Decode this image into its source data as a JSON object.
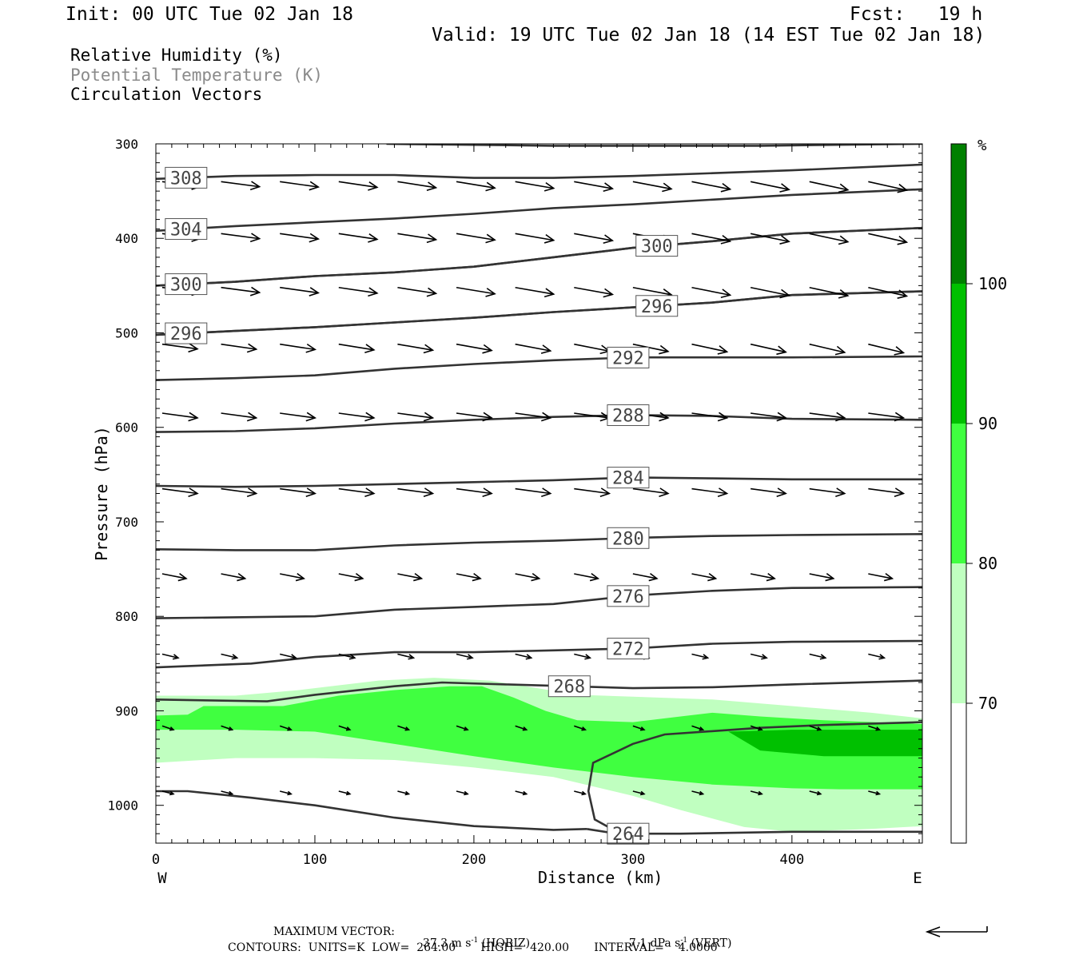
{
  "header": {
    "init": "Init: 00 UTC Tue 02 Jan 18",
    "fcst": "Fcst:   19 h",
    "valid": "Valid: 19 UTC Tue 02 Jan 18 (14 EST Tue 02 Jan 18)"
  },
  "legend": {
    "rh": "Relative Humidity (%)",
    "theta": "Potential Temperature (K)",
    "vectors": "Circulation Vectors"
  },
  "colors": {
    "rh_70": "#c0ffc0",
    "rh_80": "#40ff40",
    "rh_90": "#00c000",
    "rh_100": "#008000",
    "contour": "#333333",
    "theta_legend": "#8a8a8a"
  },
  "footer": {
    "max_vector_label": "MAXIMUM VECTOR:",
    "horiz_value": "37.3 m s",
    "horiz_unit": "(HORIZ)",
    "vert_value": "7.1 dPa s",
    "vert_unit": "(VERT)",
    "exponent": "-1",
    "contours": "CONTOURS:  UNITS=K  LOW=  264.00       HIGH=  420.00       INTERVAL=    4.0000"
  },
  "chart_data": {
    "type": "cross-section",
    "xlabel": "Distance (km)",
    "ylabel": "Pressure (hPa)",
    "xlim": [
      0,
      482
    ],
    "ylim": [
      300,
      1040
    ],
    "y_inverted": true,
    "xticks": [
      0,
      100,
      200,
      300,
      400
    ],
    "yticks": [
      300,
      400,
      500,
      600,
      700,
      800,
      900,
      1000
    ],
    "x_end_labels": {
      "left": "W",
      "right": "E"
    },
    "colorbar": {
      "unit": "%",
      "levels": [
        70,
        80,
        90,
        100
      ],
      "colors": [
        "#ffffff",
        "#c0ffc0",
        "#40ff40",
        "#00c000",
        "#008000"
      ]
    },
    "rh_fill": [
      {
        "level": 70,
        "points": [
          [
            0,
            955
          ],
          [
            0,
            884
          ],
          [
            50,
            884
          ],
          [
            90,
            878
          ],
          [
            140,
            868
          ],
          [
            175,
            865
          ],
          [
            210,
            868
          ],
          [
            240,
            876
          ],
          [
            265,
            883
          ],
          [
            300,
            885
          ],
          [
            350,
            888
          ],
          [
            400,
            895
          ],
          [
            450,
            902
          ],
          [
            482,
            908
          ],
          [
            482,
            1022
          ],
          [
            450,
            1025
          ],
          [
            400,
            1028
          ],
          [
            370,
            1023
          ],
          [
            330,
            1005
          ],
          [
            300,
            990
          ],
          [
            250,
            970
          ],
          [
            200,
            960
          ],
          [
            150,
            952
          ],
          [
            100,
            950
          ],
          [
            50,
            950
          ]
        ]
      },
      {
        "level": 80,
        "points": [
          [
            0,
            920
          ],
          [
            0,
            905
          ],
          [
            20,
            904
          ],
          [
            30,
            895
          ],
          [
            80,
            895
          ],
          [
            115,
            884
          ],
          [
            150,
            878
          ],
          [
            185,
            874
          ],
          [
            205,
            874
          ],
          [
            225,
            886
          ],
          [
            245,
            900
          ],
          [
            265,
            910
          ],
          [
            300,
            912
          ],
          [
            330,
            906
          ],
          [
            350,
            902
          ],
          [
            380,
            906
          ],
          [
            420,
            910
          ],
          [
            482,
            914
          ],
          [
            482,
            983
          ],
          [
            430,
            983
          ],
          [
            400,
            982
          ],
          [
            350,
            978
          ],
          [
            300,
            970
          ],
          [
            250,
            960
          ],
          [
            200,
            948
          ],
          [
            150,
            935
          ],
          [
            100,
            922
          ],
          [
            50,
            920
          ]
        ]
      },
      {
        "level": 90,
        "points": [
          [
            360,
            922
          ],
          [
            400,
            920
          ],
          [
            482,
            920
          ],
          [
            482,
            948
          ],
          [
            420,
            948
          ],
          [
            380,
            942
          ]
        ]
      }
    ],
    "contours": [
      {
        "label": "264",
        "label_x": 297,
        "points": [
          [
            271,
            1025
          ],
          [
            290,
            1030
          ],
          [
            330,
            1030
          ],
          [
            400,
            1028
          ],
          [
            482,
            1028
          ]
        ]
      },
      {
        "label": "264",
        "label_x": 297,
        "points": [
          [
            290,
            1028
          ],
          [
            276,
            1015
          ],
          [
            272,
            985
          ],
          [
            275,
            955
          ],
          [
            300,
            935
          ],
          [
            320,
            925
          ],
          [
            380,
            918
          ],
          [
            420,
            915
          ],
          [
            482,
            912
          ]
        ]
      },
      {
        "label": "264",
        "label_x": 297,
        "points": [
          [
            0,
            985
          ],
          [
            20,
            985
          ],
          [
            60,
            992
          ],
          [
            100,
            1000
          ],
          [
            150,
            1013
          ],
          [
            200,
            1022
          ],
          [
            250,
            1026
          ],
          [
            271,
            1025
          ]
        ]
      },
      {
        "label": "268",
        "label_x": 260,
        "points": [
          [
            0,
            888
          ],
          [
            70,
            890
          ],
          [
            100,
            883
          ],
          [
            150,
            874
          ],
          [
            180,
            870
          ],
          [
            220,
            872
          ],
          [
            260,
            874
          ],
          [
            300,
            876
          ],
          [
            350,
            875
          ],
          [
            400,
            872
          ],
          [
            482,
            868
          ]
        ]
      },
      {
        "label": "272",
        "label_x": 297,
        "points": [
          [
            0,
            854
          ],
          [
            60,
            850
          ],
          [
            100,
            843
          ],
          [
            150,
            838
          ],
          [
            200,
            838
          ],
          [
            250,
            836
          ],
          [
            300,
            834
          ],
          [
            350,
            829
          ],
          [
            400,
            827
          ],
          [
            482,
            826
          ]
        ]
      },
      {
        "label": "276",
        "label_x": 297,
        "points": [
          [
            0,
            802
          ],
          [
            100,
            800
          ],
          [
            150,
            793
          ],
          [
            200,
            790
          ],
          [
            250,
            787
          ],
          [
            300,
            778
          ],
          [
            350,
            773
          ],
          [
            400,
            770
          ],
          [
            482,
            769
          ]
        ]
      },
      {
        "label": "280",
        "label_x": 297,
        "points": [
          [
            0,
            729
          ],
          [
            50,
            730
          ],
          [
            100,
            730
          ],
          [
            150,
            725
          ],
          [
            200,
            722
          ],
          [
            250,
            720
          ],
          [
            300,
            717
          ],
          [
            350,
            715
          ],
          [
            400,
            714
          ],
          [
            482,
            713
          ]
        ]
      },
      {
        "label": "284",
        "label_x": 297,
        "points": [
          [
            0,
            662
          ],
          [
            50,
            663
          ],
          [
            100,
            662
          ],
          [
            150,
            660
          ],
          [
            200,
            658
          ],
          [
            250,
            656
          ],
          [
            300,
            653
          ],
          [
            350,
            654
          ],
          [
            400,
            655
          ],
          [
            482,
            655
          ]
        ]
      },
      {
        "label": "288",
        "label_x": 297,
        "points": [
          [
            0,
            605
          ],
          [
            50,
            604
          ],
          [
            100,
            601
          ],
          [
            150,
            596
          ],
          [
            200,
            592
          ],
          [
            250,
            589
          ],
          [
            300,
            587
          ],
          [
            350,
            588
          ],
          [
            400,
            591
          ],
          [
            482,
            592
          ]
        ]
      },
      {
        "label": "292",
        "label_x": 297,
        "points": [
          [
            0,
            550
          ],
          [
            50,
            548
          ],
          [
            100,
            545
          ],
          [
            150,
            538
          ],
          [
            200,
            533
          ],
          [
            250,
            529
          ],
          [
            300,
            526
          ],
          [
            350,
            526
          ],
          [
            400,
            526
          ],
          [
            482,
            525
          ]
        ]
      },
      {
        "label": "296",
        "label_x": 19,
        "points": [
          [
            0,
            502
          ],
          [
            50,
            498
          ],
          [
            100,
            494
          ],
          [
            150,
            489
          ],
          [
            200,
            484
          ],
          [
            250,
            478
          ],
          [
            300,
            473
          ],
          [
            350,
            468
          ],
          [
            400,
            460
          ],
          [
            482,
            456
          ]
        ]
      },
      {
        "label": "296",
        "label_x": 315,
        "points": [
          [
            0,
            502
          ],
          [
            50,
            498
          ],
          [
            100,
            494
          ],
          [
            150,
            489
          ],
          [
            200,
            484
          ],
          [
            250,
            478
          ],
          [
            300,
            473
          ],
          [
            350,
            468
          ],
          [
            400,
            460
          ],
          [
            482,
            456
          ]
        ]
      },
      {
        "label": "300",
        "label_x": 19,
        "points": [
          [
            0,
            450
          ],
          [
            50,
            446
          ],
          [
            100,
            440
          ],
          [
            150,
            436
          ],
          [
            200,
            430
          ],
          [
            250,
            420
          ],
          [
            300,
            410
          ],
          [
            350,
            403
          ],
          [
            400,
            395
          ],
          [
            482,
            389
          ]
        ]
      },
      {
        "label": "300",
        "label_x": 315,
        "points": [
          [
            0,
            450
          ],
          [
            50,
            446
          ],
          [
            100,
            440
          ],
          [
            150,
            436
          ],
          [
            200,
            430
          ],
          [
            250,
            420
          ],
          [
            300,
            410
          ],
          [
            350,
            403
          ],
          [
            400,
            395
          ],
          [
            482,
            389
          ]
        ]
      },
      {
        "label": "304",
        "label_x": 19,
        "points": [
          [
            0,
            392
          ],
          [
            50,
            387
          ],
          [
            100,
            383
          ],
          [
            150,
            379
          ],
          [
            200,
            374
          ],
          [
            250,
            368
          ],
          [
            300,
            364
          ],
          [
            350,
            359
          ],
          [
            400,
            354
          ],
          [
            482,
            348
          ]
        ]
      },
      {
        "label": "308",
        "label_x": 19,
        "points": [
          [
            0,
            337
          ],
          [
            50,
            334
          ],
          [
            100,
            333
          ],
          [
            150,
            333
          ],
          [
            200,
            336
          ],
          [
            250,
            336
          ],
          [
            300,
            334
          ],
          [
            350,
            331
          ],
          [
            400,
            328
          ],
          [
            482,
            322
          ]
        ]
      },
      {
        "label": "",
        "label_x": -1,
        "points": [
          [
            145,
            300
          ],
          [
            250,
            302
          ],
          [
            380,
            302
          ],
          [
            482,
            300
          ]
        ]
      }
    ],
    "vector_rows": [
      {
        "p": 340,
        "y2": 345,
        "xs": [
          0,
          37,
          74,
          111,
          148,
          185,
          222,
          259,
          296,
          333,
          370,
          407,
          444
        ]
      },
      {
        "p": 395,
        "y2": 400,
        "xs": [
          0,
          37,
          74,
          111,
          148,
          185,
          222,
          259,
          296,
          333,
          370,
          407,
          444
        ]
      },
      {
        "p": 452,
        "y2": 457,
        "xs": [
          0,
          37,
          74,
          111,
          148,
          185,
          222,
          259,
          296,
          333,
          370,
          407,
          444
        ]
      },
      {
        "p": 512,
        "y2": 517,
        "xs": [
          0,
          37,
          74,
          111,
          148,
          185,
          222,
          259,
          296,
          333,
          370,
          407,
          444
        ]
      },
      {
        "p": 585,
        "y2": 590,
        "xs": [
          0,
          37,
          74,
          111,
          148,
          185,
          222,
          259,
          296,
          333,
          370,
          407,
          444
        ]
      },
      {
        "p": 665,
        "y2": 670,
        "xs": [
          0,
          37,
          74,
          111,
          148,
          185,
          222,
          259,
          296,
          333,
          370,
          407,
          444
        ]
      },
      {
        "p": 755,
        "y2": 760,
        "xs": [
          0,
          37,
          74,
          111,
          148,
          185,
          222,
          259,
          296,
          333,
          370,
          407,
          444
        ]
      },
      {
        "p": 840,
        "y2": 844,
        "xs": [
          0,
          37,
          74,
          111,
          148,
          185,
          222,
          259,
          296,
          333,
          370,
          407,
          444
        ]
      },
      {
        "p": 916,
        "y2": 920,
        "xs": [
          0,
          37,
          74,
          111,
          148,
          185,
          222,
          259,
          296,
          333,
          370,
          407,
          444
        ]
      },
      {
        "p": 985,
        "y2": 988,
        "xs": [
          0,
          37,
          74,
          111,
          148,
          185,
          222,
          259,
          296,
          333,
          370,
          407,
          444
        ]
      }
    ]
  }
}
